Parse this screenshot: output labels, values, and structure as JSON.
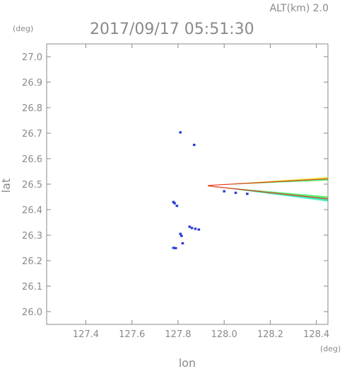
{
  "header": {
    "altitude_label": "ALT(km)  2.0",
    "timestamp": "2017/09/17  05:51:30"
  },
  "chart_data": {
    "type": "scatter",
    "xlabel": "lon",
    "ylabel": "lat",
    "x_unit": "(deg)",
    "y_unit": "(deg)",
    "xlim": [
      127.23,
      128.45
    ],
    "ylim": [
      25.95,
      27.05
    ],
    "x_ticks": [
      "127.4",
      "127.6",
      "127.8",
      "128.0",
      "128.2",
      "128.4"
    ],
    "y_ticks": [
      "26.0",
      "26.1",
      "26.2",
      "26.3",
      "26.4",
      "26.5",
      "26.6",
      "26.7",
      "26.8",
      "26.9",
      "27.0"
    ],
    "grid": false,
    "colors": {
      "axis": "#888888",
      "text": "#8a8a8a",
      "blue": "#2b3cd8",
      "red": "#e03a1a",
      "orange": "#f0a020",
      "yellow": "#e8f040",
      "green": "#60f07a",
      "cyan": "#40f0c0"
    },
    "echo_points": [
      {
        "lon": 127.81,
        "lat": 26.703
      },
      {
        "lon": 127.87,
        "lat": 26.654
      },
      {
        "lon": 127.78,
        "lat": 26.43
      },
      {
        "lon": 127.785,
        "lat": 26.425
      },
      {
        "lon": 127.795,
        "lat": 26.415
      },
      {
        "lon": 127.81,
        "lat": 26.305
      },
      {
        "lon": 127.815,
        "lat": 26.297
      },
      {
        "lon": 127.85,
        "lat": 26.333
      },
      {
        "lon": 127.86,
        "lat": 26.328
      },
      {
        "lon": 127.875,
        "lat": 26.325
      },
      {
        "lon": 127.89,
        "lat": 26.322
      },
      {
        "lon": 127.82,
        "lat": 26.268
      },
      {
        "lon": 127.78,
        "lat": 26.25
      },
      {
        "lon": 127.79,
        "lat": 26.249
      },
      {
        "lon": 128.0,
        "lat": 26.472
      },
      {
        "lon": 128.05,
        "lat": 26.466
      },
      {
        "lon": 128.1,
        "lat": 26.462
      }
    ],
    "beam_bands": [
      {
        "name": "upper",
        "apex": [
          127.93,
          26.495
        ],
        "end_top": [
          128.45,
          26.528
        ],
        "end_bottom": [
          128.45,
          26.514
        ],
        "fill": [
          "#60f07a",
          "#e8f040"
        ],
        "edge": "#e03a1a"
      },
      {
        "name": "lower",
        "apex": [
          127.93,
          26.493
        ],
        "end_top": [
          128.45,
          26.452
        ],
        "end_bottom": [
          128.45,
          26.432
        ],
        "fill": [
          "#40f0c0",
          "#60f07a"
        ],
        "edge": "#e03a1a"
      }
    ]
  }
}
